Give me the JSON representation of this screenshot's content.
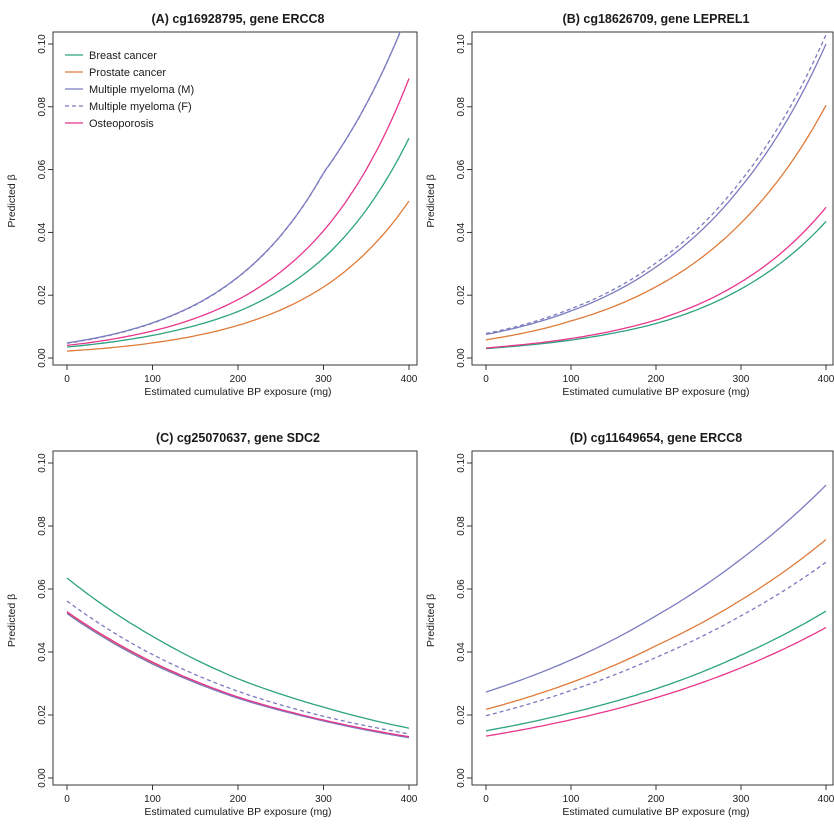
{
  "colors": {
    "breast": "#2ca37e",
    "prostate": "#e07b39",
    "myeloma": "#7b7cbf",
    "osteo": "#e8368c"
  },
  "legend": [
    {
      "label": "Breast cancer",
      "color": "#2ca37e",
      "dash": false
    },
    {
      "label": "Prostate cancer",
      "color": "#e07b39",
      "dash": false
    },
    {
      "label": "Multiple myeloma (M)",
      "color": "#7b7cbf",
      "dash": false
    },
    {
      "label": "Multiple myeloma (F)",
      "color": "#7b7cbf",
      "dash": true
    },
    {
      "label": "Osteoporosis",
      "color": "#e8368c",
      "dash": false
    }
  ],
  "chart_data": [
    {
      "type": "line",
      "title": "(A) cg16928795, gene ERCC8",
      "xlabel": "Estimated cumulative BP exposure (mg)",
      "ylabel": "Predicted β",
      "xlim": [
        0,
        400
      ],
      "ylim": [
        0,
        0.1
      ],
      "xticks": [
        "0",
        "100",
        "200",
        "300",
        "400"
      ],
      "yticks": [
        "0.00",
        "0.02",
        "0.04",
        "0.06",
        "0.08",
        "0.10"
      ],
      "legend_position": "top-left",
      "series": [
        {
          "name": "Breast cancer",
          "color": "#2ca37e",
          "dash": false,
          "x": [
            0,
            100,
            200,
            300,
            400
          ],
          "y": [
            0.0035,
            0.0072,
            0.0148,
            0.0318,
            0.07
          ]
        },
        {
          "name": "Prostate cancer",
          "color": "#e07b39",
          "dash": false,
          "x": [
            0,
            100,
            200,
            300,
            400
          ],
          "y": [
            0.0022,
            0.0048,
            0.0104,
            0.0226,
            0.05
          ]
        },
        {
          "name": "Multiple myeloma (M)",
          "color": "#7b7cbf",
          "dash": false,
          "x": [
            0,
            100,
            200,
            300,
            390
          ],
          "y": [
            0.0048,
            0.0112,
            0.0258,
            0.059,
            0.104
          ]
        },
        {
          "name": "Multiple myeloma (F)",
          "color": "#7b7cbf",
          "dash": true,
          "x": [
            0,
            100,
            200,
            300,
            390
          ],
          "y": [
            0.0047,
            0.0111,
            0.0257,
            0.0589,
            0.104
          ]
        },
        {
          "name": "Osteoporosis",
          "color": "#e8368c",
          "dash": false,
          "x": [
            0,
            100,
            200,
            300,
            400
          ],
          "y": [
            0.004,
            0.0086,
            0.0186,
            0.0405,
            0.089
          ]
        }
      ]
    },
    {
      "type": "line",
      "title": "(B) cg18626709, gene LEPREL1",
      "xlabel": "Estimated cumulative BP exposure (mg)",
      "ylabel": "Predicted β",
      "xlim": [
        0,
        400
      ],
      "ylim": [
        0,
        0.1
      ],
      "xticks": [
        "0",
        "100",
        "200",
        "300",
        "400"
      ],
      "yticks": [
        "0.00",
        "0.02",
        "0.04",
        "0.06",
        "0.08",
        "0.10"
      ],
      "series": [
        {
          "name": "Breast cancer",
          "color": "#2ca37e",
          "dash": false,
          "x": [
            0,
            100,
            200,
            300,
            400
          ],
          "y": [
            0.003,
            0.0057,
            0.011,
            0.022,
            0.0435
          ]
        },
        {
          "name": "Prostate cancer",
          "color": "#e07b39",
          "dash": false,
          "x": [
            0,
            100,
            200,
            300,
            400
          ],
          "y": [
            0.0058,
            0.0118,
            0.0227,
            0.043,
            0.0805
          ]
        },
        {
          "name": "Multiple myeloma (M)",
          "color": "#7b7cbf",
          "dash": false,
          "x": [
            0,
            100,
            200,
            300,
            400
          ],
          "y": [
            0.0075,
            0.015,
            0.029,
            0.0545,
            0.1
          ]
        },
        {
          "name": "Multiple myeloma (F)",
          "color": "#7b7cbf",
          "dash": true,
          "x": [
            0,
            100,
            200,
            300,
            400
          ],
          "y": [
            0.0078,
            0.0157,
            0.0303,
            0.0565,
            0.103
          ]
        },
        {
          "name": "Osteoporosis",
          "color": "#e8368c",
          "dash": false,
          "x": [
            0,
            100,
            200,
            300,
            400
          ],
          "y": [
            0.0032,
            0.0062,
            0.0121,
            0.0242,
            0.048
          ]
        }
      ]
    },
    {
      "type": "line",
      "title": "(C) cg25070637, gene SDC2",
      "xlabel": "Estimated cumulative BP exposure (mg)",
      "ylabel": "Predicted β",
      "xlim": [
        0,
        400
      ],
      "ylim": [
        0,
        0.1
      ],
      "xticks": [
        "0",
        "100",
        "200",
        "300",
        "400"
      ],
      "yticks": [
        "0.00",
        "0.02",
        "0.04",
        "0.06",
        "0.08",
        "0.10"
      ],
      "series": [
        {
          "name": "Breast cancer",
          "color": "#2ca37e",
          "dash": false,
          "x": [
            0,
            100,
            200,
            300,
            400
          ],
          "y": [
            0.0635,
            0.045,
            0.0315,
            0.0225,
            0.0158
          ]
        },
        {
          "name": "Prostate cancer",
          "color": "#e07b39",
          "dash": false,
          "x": [
            0,
            100,
            200,
            300,
            400
          ],
          "y": [
            0.0525,
            0.0365,
            0.0255,
            0.0183,
            0.013
          ]
        },
        {
          "name": "Multiple myeloma (M)",
          "color": "#7b7cbf",
          "dash": false,
          "x": [
            0,
            100,
            200,
            300,
            400
          ],
          "y": [
            0.0522,
            0.0362,
            0.0253,
            0.0181,
            0.0128
          ]
        },
        {
          "name": "Multiple myeloma (F)",
          "color": "#7b7cbf",
          "dash": true,
          "x": [
            0,
            100,
            200,
            300,
            400
          ],
          "y": [
            0.0562,
            0.0392,
            0.0275,
            0.0196,
            0.014
          ]
        },
        {
          "name": "Osteoporosis",
          "color": "#e8368c",
          "dash": false,
          "x": [
            0,
            100,
            200,
            300,
            400
          ],
          "y": [
            0.0528,
            0.0368,
            0.0257,
            0.0184,
            0.0131
          ]
        }
      ]
    },
    {
      "type": "line",
      "title": "(D) cg11649654, gene ERCC8",
      "xlabel": "Estimated cumulative BP exposure (mg)",
      "ylabel": "Predicted β",
      "xlim": [
        0,
        400
      ],
      "ylim": [
        0,
        0.1
      ],
      "xticks": [
        "0",
        "100",
        "200",
        "300",
        "400"
      ],
      "yticks": [
        "0.00",
        "0.02",
        "0.04",
        "0.06",
        "0.08",
        "0.10"
      ],
      "series": [
        {
          "name": "Breast cancer",
          "color": "#2ca37e",
          "dash": false,
          "x": [
            0,
            100,
            200,
            300,
            400
          ],
          "y": [
            0.015,
            0.0207,
            0.0283,
            0.039,
            0.053
          ]
        },
        {
          "name": "Prostate cancer",
          "color": "#e07b39",
          "dash": false,
          "x": [
            0,
            100,
            200,
            300,
            400
          ],
          "y": [
            0.0218,
            0.0303,
            0.042,
            0.0565,
            0.0757
          ]
        },
        {
          "name": "Multiple myeloma (M)",
          "color": "#7b7cbf",
          "dash": false,
          "x": [
            0,
            100,
            200,
            300,
            400
          ],
          "y": [
            0.0273,
            0.0375,
            0.0515,
            0.0695,
            0.093
          ]
        },
        {
          "name": "Multiple myeloma (F)",
          "color": "#7b7cbf",
          "dash": true,
          "x": [
            0,
            100,
            200,
            300,
            400
          ],
          "y": [
            0.0198,
            0.0278,
            0.0383,
            0.0515,
            0.0685
          ]
        },
        {
          "name": "Osteoporosis",
          "color": "#e8368c",
          "dash": false,
          "x": [
            0,
            100,
            200,
            300,
            400
          ],
          "y": [
            0.0133,
            0.0185,
            0.0255,
            0.035,
            0.0478
          ]
        }
      ]
    }
  ]
}
